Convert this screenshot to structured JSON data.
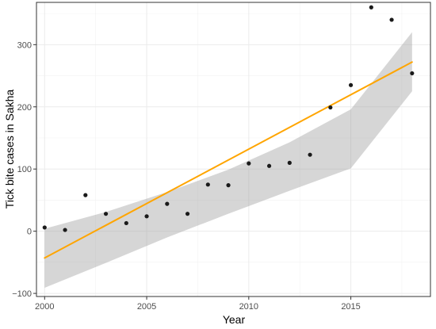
{
  "chart_data": {
    "type": "scatter",
    "title": "",
    "xlabel": "Year",
    "ylabel": "Tick bite cases in Sakha",
    "xlim": [
      1999.6,
      2018.9
    ],
    "ylim": [
      -105,
      368
    ],
    "x_ticks": [
      2000,
      2005,
      2010,
      2015
    ],
    "x_tick_labels": [
      "2000",
      "2005",
      "2010",
      "2015"
    ],
    "y_ticks": [
      -100,
      0,
      100,
      200,
      300
    ],
    "y_tick_labels": [
      "−100",
      "0",
      "100",
      "200",
      "300"
    ],
    "grid": true,
    "legend": "none",
    "series": [
      {
        "type": "scatter",
        "x": [
          2000,
          2001,
          2002,
          2003,
          2004,
          2005,
          2006,
          2007,
          2008,
          2009,
          2010,
          2011,
          2012,
          2013,
          2014,
          2015,
          2016,
          2017,
          2018
        ],
        "y": [
          6,
          2,
          58,
          28,
          13,
          24,
          44,
          28,
          75,
          74,
          109,
          105,
          110,
          123,
          199,
          235,
          360,
          340,
          254
        ],
        "color": "#1a1a1a"
      }
    ],
    "trend": {
      "type": "line",
      "method": "linear fit",
      "x": [
        2000,
        2018
      ],
      "y": [
        -43,
        272
      ],
      "color": "#ffa500"
    },
    "confidence_band": {
      "x": [
        2000,
        2003,
        2006,
        2009,
        2012,
        2015,
        2018
      ],
      "lower": [
        -91,
        -51,
        -10,
        28,
        65,
        101,
        225
      ],
      "upper": [
        4,
        31,
        63,
        99,
        143,
        196,
        320
      ],
      "color": "#999999"
    }
  }
}
